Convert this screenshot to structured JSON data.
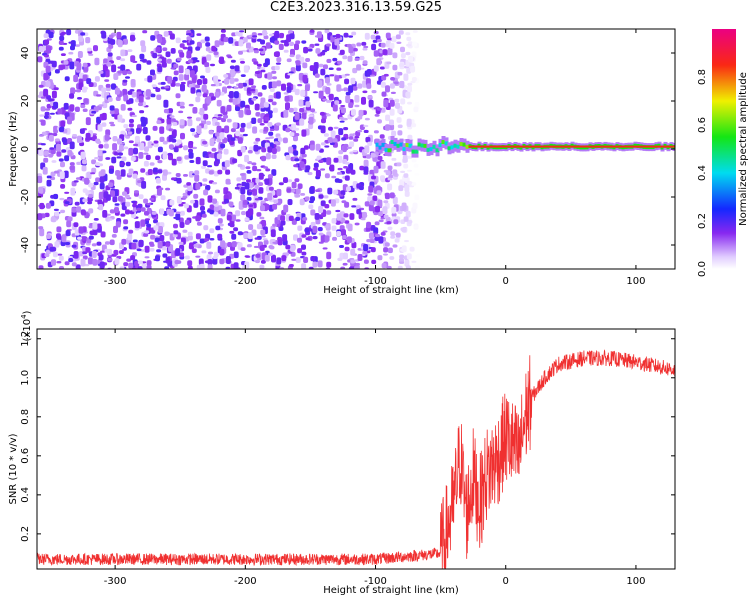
{
  "title": "C2E3.2023.316.13.59.G25",
  "chart_data": [
    {
      "type": "heatmap",
      "xlabel": "Height of straight line (km)",
      "ylabel": "Frequency (Hz)",
      "xlim": [
        -360,
        130
      ],
      "ylim": [
        -50,
        50
      ],
      "xticks": [
        -300,
        -200,
        -100,
        0,
        100
      ],
      "yticks": [
        -40,
        -20,
        0,
        20,
        40
      ],
      "colorbar": {
        "label": "Normalized spectral amplitude",
        "range": [
          0.0,
          1.0
        ],
        "ticks": [
          "0.0",
          "0.2",
          "0.4",
          "0.6",
          "0.8"
        ],
        "colormap": "rainbow (white, violet, blue, cyan, green, yellow, red, magenta)"
      },
      "noise_region_x": [
        -360,
        -100
      ],
      "signal_line": {
        "freq_hz": 1,
        "onset_x": -100,
        "wander_x": [
          -100,
          -30
        ],
        "steady_x": [
          -30,
          130
        ]
      }
    },
    {
      "type": "line",
      "xlabel": "Height of straight line (km)",
      "ylabel": "SNR (10 * v/v)",
      "multiplier_label": "(x10",
      "multiplier_exp": "4",
      "multiplier_close": ")",
      "xlim": [
        -360,
        130
      ],
      "ylim": [
        0.02,
        1.25
      ],
      "xticks": [
        -300,
        -200,
        -100,
        0,
        100
      ],
      "yticks": [
        "0.2",
        "0.4",
        "0.6",
        "0.8",
        "1.0",
        "1.2"
      ],
      "series": [
        {
          "color": "#f03030",
          "profile_x": [
            -360,
            -100,
            -50,
            -40,
            -35,
            -30,
            -25,
            -20,
            -15,
            -10,
            -5,
            0,
            5,
            10,
            15,
            20,
            30,
            40,
            60,
            80,
            100,
            130
          ],
          "profile_y": [
            0.07,
            0.07,
            0.1,
            0.35,
            0.6,
            0.3,
            0.5,
            0.35,
            0.5,
            0.55,
            0.6,
            0.7,
            0.65,
            0.6,
            0.8,
            0.9,
            1.0,
            1.07,
            1.1,
            1.1,
            1.08,
            1.04
          ]
        }
      ]
    }
  ]
}
